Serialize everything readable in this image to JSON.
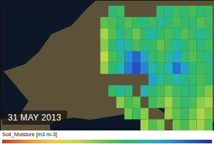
{
  "chart_data": {
    "type": "heatmap",
    "title": "31 MAY 2013",
    "colorbar_label": "Soil_Moisture [m3 m-3]",
    "tick_labels": false,
    "xlim": [
      -13,
      27
    ],
    "ylim": [
      38,
      57
    ],
    "color_range": [
      0,
      0.5
    ],
    "x": [
      5,
      6.5,
      8,
      9.5,
      11,
      12.5,
      14,
      15.5,
      17,
      18.5,
      20,
      21.5,
      23,
      24.5,
      26
    ],
    "y": [
      55.5,
      54,
      52.5,
      51,
      49.5,
      48,
      46.5,
      45,
      43.5,
      42,
      40.5
    ],
    "cells": [
      [
        null,
        null,
        0.3,
        0.28,
        null,
        null,
        null,
        null,
        0.3,
        0.32,
        0.28,
        0.3,
        0.27,
        0.3,
        0.29
      ],
      [
        null,
        0.25,
        0.27,
        0.3,
        0.26,
        0.29,
        0.31,
        0.28,
        0.33,
        0.3,
        0.27,
        0.29,
        0.3,
        0.26,
        0.28
      ],
      [
        null,
        0.2,
        0.26,
        0.32,
        0.28,
        0.24,
        0.3,
        0.35,
        0.29,
        0.27,
        0.31,
        0.26,
        0.29,
        0.33,
        0.3
      ],
      [
        null,
        0.22,
        0.3,
        0.36,
        0.33,
        0.27,
        0.31,
        0.29,
        0.25,
        0.28,
        0.34,
        0.3,
        0.27,
        0.31,
        0.28
      ],
      [
        null,
        0.18,
        0.27,
        0.32,
        0.4,
        0.44,
        0.38,
        0.3,
        0.27,
        0.33,
        0.37,
        0.3,
        0.26,
        0.29,
        0.32
      ],
      [
        null,
        0.21,
        0.3,
        0.35,
        0.42,
        0.46,
        0.41,
        0.34,
        0.3,
        0.36,
        0.43,
        0.38,
        0.31,
        0.28,
        0.3
      ],
      [
        null,
        null,
        null,
        null,
        null,
        null,
        null,
        0.38,
        0.33,
        0.3,
        0.35,
        0.32,
        0.29,
        0.27,
        0.3
      ],
      [
        null,
        null,
        0.29,
        0.33,
        0.31,
        null,
        0.36,
        0.3,
        0.27,
        0.24,
        0.28,
        0.31,
        0.3,
        0.26,
        0.23
      ],
      [
        null,
        null,
        null,
        0.22,
        0.27,
        0.25,
        null,
        0.28,
        0.25,
        0.2,
        0.26,
        0.3,
        0.27,
        0.22,
        0.2
      ],
      [
        null,
        null,
        null,
        null,
        0.24,
        0.28,
        0.22,
        null,
        null,
        0.21,
        0.25,
        0.29,
        0.24,
        0.19,
        0.23
      ],
      [
        null,
        null,
        null,
        null,
        null,
        null,
        0.2,
        0.26,
        0.23,
        null,
        0.24,
        0.27,
        0.22,
        0.2,
        0.25
      ]
    ]
  }
}
